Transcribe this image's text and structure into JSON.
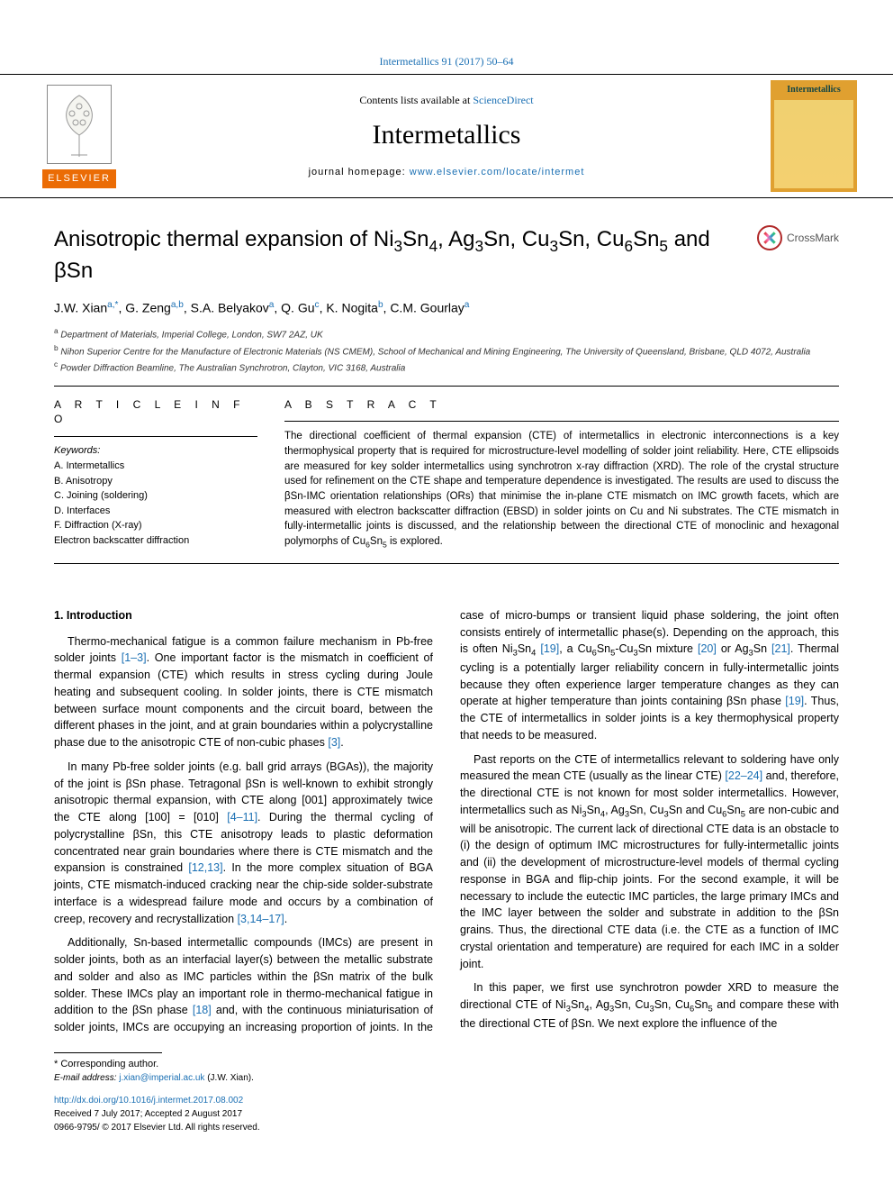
{
  "top_citation": "Intermetallics 91 (2017) 50–64",
  "header": {
    "contents_prefix": "Contents lists available at ",
    "contents_link": "ScienceDirect",
    "journal": "Intermetallics",
    "homepage_prefix": "journal homepage: ",
    "homepage_url": "www.elsevier.com/locate/intermet",
    "publisher_logo_text": "ELSEVIER",
    "cover_label": "Intermetallics"
  },
  "title_html": "Anisotropic thermal expansion of Ni<sub>3</sub>Sn<sub>4</sub>, Ag<sub>3</sub>Sn, Cu<sub>3</sub>Sn, Cu<sub>6</sub>Sn<sub>5</sub> and βSn",
  "crossmark": "CrossMark",
  "authors_html": "J.W. Xian<sup>a,*</sup>, G. Zeng<sup>a,b</sup>, S.A. Belyakov<sup>a</sup>, Q. Gu<sup>c</sup>, K. Nogita<sup>b</sup>, C.M. Gourlay<sup>a</sup>",
  "affiliations": [
    {
      "sup": "a",
      "text": "Department of Materials, Imperial College, London, SW7 2AZ, UK"
    },
    {
      "sup": "b",
      "text": "Nihon Superior Centre for the Manufacture of Electronic Materials (NS CMEM), School of Mechanical and Mining Engineering, The University of Queensland, Brisbane, QLD 4072, Australia"
    },
    {
      "sup": "c",
      "text": "Powder Diffraction Beamline, The Australian Synchrotron, Clayton, VIC 3168, Australia"
    }
  ],
  "article_info_head": "A R T I C L E  I N F O",
  "abstract_head": "A B S T R A C T",
  "keywords_head": "Keywords:",
  "keywords": [
    "A. Intermetallics",
    "B. Anisotropy",
    "C. Joining (soldering)",
    "D. Interfaces",
    "F. Diffraction (X-ray)",
    "Electron backscatter diffraction"
  ],
  "abstract_html": "The directional coefficient of thermal expansion (CTE) of intermetallics in electronic interconnections is a key thermophysical property that is required for microstructure-level modelling of solder joint reliability. Here, CTE ellipsoids are measured for key solder intermetallics using synchrotron x-ray diffraction (XRD). The role of the crystal structure used for refinement on the CTE shape and temperature dependence is investigated. The results are used to discuss the βSn-IMC orientation relationships (ORs) that minimise the in-plane CTE mismatch on IMC growth facets, which are measured with electron backscatter diffraction (EBSD) in solder joints on Cu and Ni substrates. The CTE mismatch in fully-intermetallic joints is discussed, and the relationship between the directional CTE of monoclinic and hexagonal polymorphs of Cu<sub>6</sub>Sn<sub>5</sub> is explored.",
  "section_1_head": "1. Introduction",
  "paragraphs": [
    "Thermo-mechanical fatigue is a common failure mechanism in Pb-free solder joints <a class='ref' href='#'>[1–3]</a>. One important factor is the mismatch in coefficient of thermal expansion (CTE) which results in stress cycling during Joule heating and subsequent cooling. In solder joints, there is CTE mismatch between surface mount components and the circuit board, between the different phases in the joint, and at grain boundaries within a polycrystalline phase due to the anisotropic CTE of non-cubic phases <a class='ref' href='#'>[3]</a>.",
    "In many Pb-free solder joints (e.g. ball grid arrays (BGAs)), the majority of the joint is βSn phase. Tetragonal βSn is well-known to exhibit strongly anisotropic thermal expansion, with CTE along [001] approximately twice the CTE along [100] = [010] <a class='ref' href='#'>[4–11]</a>. During the thermal cycling of polycrystalline βSn, this CTE anisotropy leads to plastic deformation concentrated near grain boundaries where there is CTE mismatch and the expansion is constrained <a class='ref' href='#'>[12,13]</a>. In the more complex situation of BGA joints, CTE mismatch-induced cracking near the chip-side solder-substrate interface is a widespread failure mode and occurs by a combination of creep, recovery and recrystallization <a class='ref' href='#'>[3,14–17]</a>.",
    "Additionally, Sn-based intermetallic compounds (IMCs) are present in solder joints, both as an interfacial layer(s) between the metallic substrate and solder and also as IMC particles within the βSn matrix of the bulk solder. These IMCs play an important role in thermo-mechanical fatigue in addition to the βSn phase <a class='ref' href='#'>[18]</a> and, with the continuous miniaturisation of solder joints, IMCs are occupying an increasing proportion of joints. In the case of micro-bumps or transient liquid phase soldering, the joint often consists entirely of intermetallic phase(s). Depending on the approach, this is often Ni<sub>3</sub>Sn<sub>4</sub> <a class='ref' href='#'>[19]</a>, a Cu<sub>6</sub>Sn<sub>5</sub>-Cu<sub>3</sub>Sn mixture <a class='ref' href='#'>[20]</a> or Ag<sub>3</sub>Sn <a class='ref' href='#'>[21]</a>. Thermal cycling is a potentially larger reliability concern in fully-intermetallic joints because they often experience larger temperature changes as they can operate at higher temperature than joints containing βSn phase <a class='ref' href='#'>[19]</a>. Thus, the CTE of intermetallics in solder joints is a key thermophysical property that needs to be measured.",
    "Past reports on the CTE of intermetallics relevant to soldering have only measured the mean CTE (usually as the linear CTE) <a class='ref' href='#'>[22–24]</a> and, therefore, the directional CTE is not known for most solder intermetallics. However, intermetallics such as Ni<sub>3</sub>Sn<sub>4</sub>, Ag<sub>3</sub>Sn, Cu<sub>3</sub>Sn and Cu<sub>6</sub>Sn<sub>5</sub> are non-cubic and will be anisotropic. The current lack of directional CTE data is an obstacle to (i) the design of optimum IMC microstructures for fully-intermetallic joints and (ii) the development of microstructure-level models of thermal cycling response in BGA and flip-chip joints. For the second example, it will be necessary to include the eutectic IMC particles, the large primary IMCs and the IMC layer between the solder and substrate in addition to the βSn grains. Thus, the directional CTE data (i.e. the CTE as a function of IMC crystal orientation and temperature) are required for each IMC in a solder joint.",
    "In this paper, we first use synchrotron powder XRD to measure the directional CTE of Ni<sub>3</sub>Sn<sub>4</sub>, Ag<sub>3</sub>Sn, Cu<sub>3</sub>Sn, Cu<sub>6</sub>Sn<sub>5</sub> and compare these with the directional CTE of βSn. We next explore the influence of the"
  ],
  "footer": {
    "corr_label": "* Corresponding author.",
    "email_label": "E-mail address: ",
    "email": "j.xian@imperial.ac.uk",
    "email_who": " (J.W. Xian).",
    "doi": "http://dx.doi.org/10.1016/j.intermet.2017.08.002",
    "dates": "Received 7 July 2017; Accepted 2 August 2017",
    "copyright": "0966-9795/ © 2017 Elsevier Ltd. All rights reserved."
  },
  "colors": {
    "link": "#1a6fb3",
    "elsevier_bg": "#eb6c05",
    "cover_bg": "#e0a030"
  }
}
